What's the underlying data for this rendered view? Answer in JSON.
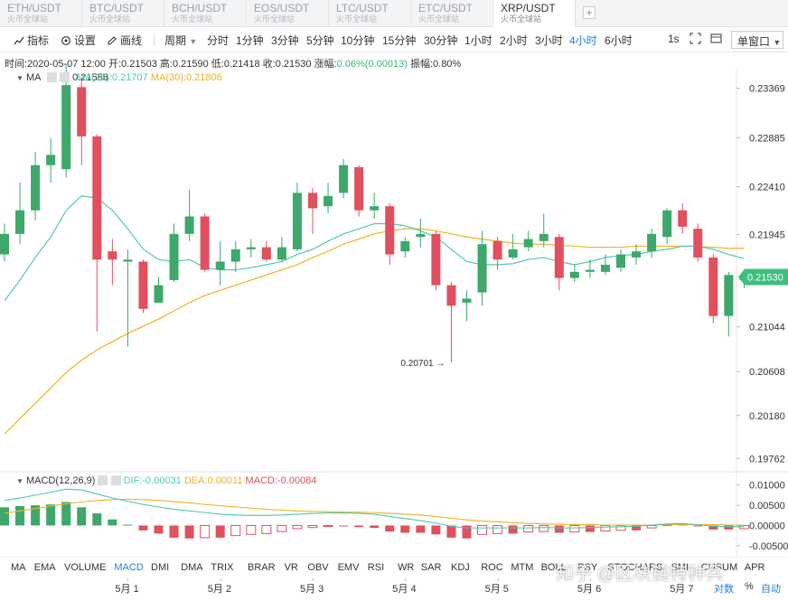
{
  "tabs": [
    {
      "symbol": "ETH/USDT",
      "sub": "火币全球站"
    },
    {
      "symbol": "BTC/USDT",
      "sub": "火币全球站"
    },
    {
      "symbol": "BCH/USDT",
      "sub": "火币全球站"
    },
    {
      "symbol": "EOS/USDT",
      "sub": "火币全球站"
    },
    {
      "symbol": "LTC/USDT",
      "sub": "火币全球站"
    },
    {
      "symbol": "ETC/USDT",
      "sub": "火币全球站"
    },
    {
      "symbol": "XRP/USDT",
      "sub": "火币全球站"
    }
  ],
  "tab_add": "+",
  "toolbar": {
    "indicator": "指标",
    "settings": "设置",
    "draw": "画线",
    "period": "周期",
    "intervals": [
      "分时",
      "1分钟",
      "3分钟",
      "5分钟",
      "10分钟",
      "15分钟",
      "30分钟",
      "1小时",
      "2小时",
      "3小时",
      "4小时",
      "6小时"
    ],
    "active_interval": "4小时",
    "refresh": "1s",
    "window_mode": "单窗口"
  },
  "info": {
    "time_label": "时间:",
    "time": "2020-05-07 12:00",
    "open_label": "开:",
    "open": "0.21503",
    "high_label": "高:",
    "high": "0.21590",
    "low_label": "低:",
    "low": "0.21418",
    "close_label": "收:",
    "close": "0.21530",
    "change_label": "涨幅:",
    "change": "0.06%(0.00013)",
    "amp_label": "振幅:",
    "amplitude": "0.80%"
  },
  "ma_legend": {
    "name": "MA",
    "ma1": "0.21588",
    "ma2": "MA(15):0.21707",
    "ma3": "MA(30):0.21806"
  },
  "macd_legend": {
    "name": "MACD(12,26,9)",
    "dif": "DIF:-0.00031",
    "dea": "DEA:0.00011",
    "macd": "MACD:-0.00084"
  },
  "colors": {
    "up": "#3da86a",
    "down": "#e0505e",
    "ma15": "#4ec9b0",
    "ma30": "#f0b323",
    "accent": "#2a7ae2"
  },
  "chart_data": {
    "type": "candlestick",
    "price_axis": {
      "ticks": [
        0.23369,
        0.22885,
        0.2241,
        0.21945,
        0.21477,
        0.21044,
        0.20608,
        0.2018,
        0.19762
      ],
      "range": [
        0.1965,
        0.2356
      ]
    },
    "last_price": "0.21530",
    "low_annotation": "0.20701",
    "macd_axis": {
      "ticks": [
        "0.01000",
        "0.00500",
        "0.00000",
        "-0.00500"
      ],
      "range": [
        -0.0075,
        0.0115
      ]
    },
    "x_labels": [
      "5月 1",
      "5月 2",
      "5月 3",
      "5月 4",
      "5月 5",
      "5月 6",
      "5月 7"
    ],
    "x_label_index": [
      8,
      14,
      20,
      26,
      32,
      38,
      44
    ],
    "candles": [
      [
        0.2175,
        0.2195,
        0.2205,
        0.2168
      ],
      [
        0.2195,
        0.2218,
        0.2245,
        0.2185
      ],
      [
        0.2218,
        0.2262,
        0.2275,
        0.2208
      ],
      [
        0.2262,
        0.2272,
        0.2288,
        0.2245
      ],
      [
        0.2258,
        0.234,
        0.236,
        0.225
      ],
      [
        0.2338,
        0.229,
        0.2345,
        0.2262
      ],
      [
        0.229,
        0.217,
        0.2292,
        0.21
      ],
      [
        0.2178,
        0.217,
        0.219,
        0.2145
      ],
      [
        0.2168,
        0.217,
        0.218,
        0.2085
      ],
      [
        0.2168,
        0.2122,
        0.217,
        0.2118
      ],
      [
        0.2128,
        0.2145,
        0.2153,
        0.2128
      ],
      [
        0.215,
        0.2195,
        0.2205,
        0.2148
      ],
      [
        0.2195,
        0.2212,
        0.2238,
        0.2188
      ],
      [
        0.2212,
        0.216,
        0.2215,
        0.2158
      ],
      [
        0.216,
        0.2168,
        0.2188,
        0.2145
      ],
      [
        0.2168,
        0.218,
        0.2188,
        0.2158
      ],
      [
        0.218,
        0.2182,
        0.219,
        0.2172
      ],
      [
        0.2182,
        0.217,
        0.2188,
        0.2168
      ],
      [
        0.217,
        0.2182,
        0.2192,
        0.2168
      ],
      [
        0.218,
        0.2235,
        0.2245,
        0.2178
      ],
      [
        0.2235,
        0.222,
        0.224,
        0.2195
      ],
      [
        0.2222,
        0.2232,
        0.2245,
        0.2215
      ],
      [
        0.2235,
        0.2262,
        0.2268,
        0.223
      ],
      [
        0.226,
        0.2218,
        0.2262,
        0.2212
      ],
      [
        0.2218,
        0.2222,
        0.2235,
        0.221
      ],
      [
        0.2222,
        0.2175,
        0.2225,
        0.2165
      ],
      [
        0.2178,
        0.2188,
        0.2192,
        0.2172
      ],
      [
        0.2192,
        0.2195,
        0.221,
        0.2182
      ],
      [
        0.2195,
        0.2145,
        0.2198,
        0.214
      ],
      [
        0.2145,
        0.2125,
        0.2148,
        0.207
      ],
      [
        0.2128,
        0.2132,
        0.214,
        0.211
      ],
      [
        0.2138,
        0.2185,
        0.2198,
        0.2125
      ],
      [
        0.2188,
        0.217,
        0.2192,
        0.216
      ],
      [
        0.2172,
        0.218,
        0.2195,
        0.217
      ],
      [
        0.2182,
        0.219,
        0.2198,
        0.2178
      ],
      [
        0.2188,
        0.2195,
        0.2215,
        0.2182
      ],
      [
        0.2192,
        0.2152,
        0.2195,
        0.214
      ],
      [
        0.2152,
        0.2158,
        0.2165,
        0.2148
      ],
      [
        0.2158,
        0.216,
        0.217,
        0.2152
      ],
      [
        0.2158,
        0.2165,
        0.2175,
        0.2155
      ],
      [
        0.2162,
        0.2175,
        0.218,
        0.2158
      ],
      [
        0.2172,
        0.2178,
        0.2185,
        0.2165
      ],
      [
        0.2178,
        0.2195,
        0.22,
        0.2172
      ],
      [
        0.2192,
        0.2218,
        0.222,
        0.2185
      ],
      [
        0.2218,
        0.2202,
        0.2225,
        0.2195
      ],
      [
        0.22,
        0.2172,
        0.2205,
        0.2168
      ],
      [
        0.2172,
        0.2115,
        0.2175,
        0.2108
      ],
      [
        0.2115,
        0.2155,
        0.2158,
        0.2095
      ],
      [
        0.215,
        0.2153,
        0.2159,
        0.2142
      ]
    ],
    "ma15": [
      0.213,
      0.215,
      0.2172,
      0.2192,
      0.2218,
      0.2232,
      0.223,
      0.2218,
      0.22,
      0.218,
      0.217,
      0.2168,
      0.217,
      0.2162,
      0.216,
      0.216,
      0.2162,
      0.2165,
      0.2168,
      0.2175,
      0.218,
      0.2188,
      0.2195,
      0.22,
      0.2205,
      0.2205,
      0.2203,
      0.2198,
      0.2192,
      0.218,
      0.2168,
      0.2165,
      0.2165,
      0.2166,
      0.217,
      0.2172,
      0.2168,
      0.2165,
      0.2168,
      0.2172,
      0.2174,
      0.2175,
      0.2178,
      0.218,
      0.2183,
      0.2183,
      0.218,
      0.2175,
      0.2171
    ],
    "ma30": [
      0.2,
      0.2015,
      0.203,
      0.2045,
      0.206,
      0.2072,
      0.2082,
      0.209,
      0.2098,
      0.2105,
      0.2112,
      0.212,
      0.2128,
      0.2135,
      0.214,
      0.2145,
      0.215,
      0.2155,
      0.216,
      0.2165,
      0.2172,
      0.2178,
      0.2185,
      0.219,
      0.2195,
      0.2198,
      0.22,
      0.22,
      0.2198,
      0.2195,
      0.2192,
      0.219,
      0.2188,
      0.2186,
      0.2185,
      0.2185,
      0.2184,
      0.2183,
      0.2182,
      0.2182,
      0.2182,
      0.2183,
      0.2183,
      0.2183,
      0.2183,
      0.2183,
      0.2182,
      0.2181,
      0.2181
    ],
    "macd_hist": [
      0.0045,
      0.0048,
      0.005,
      0.0052,
      0.0058,
      0.0045,
      0.003,
      0.0015,
      0.0002,
      -0.0012,
      -0.002,
      -0.003,
      -0.0032,
      -0.003,
      -0.003,
      -0.0025,
      -0.0022,
      -0.002,
      -0.0015,
      -0.0008,
      -0.0005,
      -0.0002,
      -0.0002,
      -0.0004,
      -0.0006,
      -0.0015,
      -0.0018,
      -0.0018,
      -0.0022,
      -0.003,
      -0.0032,
      -0.0022,
      -0.002,
      -0.002,
      -0.0016,
      -0.0015,
      -0.0018,
      -0.0016,
      -0.0016,
      -0.0014,
      -0.0012,
      -0.0012,
      -0.0006,
      0.0001,
      0.0004,
      -0.0002,
      -0.001,
      -0.001,
      -0.0008
    ],
    "dif": [
      0.0062,
      0.0068,
      0.0075,
      0.0082,
      0.009,
      0.0088,
      0.0078,
      0.0068,
      0.006,
      0.0052,
      0.0046,
      0.004,
      0.0036,
      0.0032,
      0.0028,
      0.0026,
      0.0025,
      0.0025,
      0.0026,
      0.0028,
      0.003,
      0.0031,
      0.0031,
      0.003,
      0.0028,
      0.0022,
      0.0017,
      0.0012,
      0.0006,
      -0.0002,
      -0.0006,
      -0.0006,
      -0.0006,
      -0.0006,
      -0.0006,
      -0.0005,
      -0.0006,
      -0.0006,
      -0.0005,
      -0.0004,
      -0.0003,
      -0.0002,
      0.0001,
      0.0004,
      0.0005,
      0.0002,
      -0.0002,
      -0.0003,
      -0.0003
    ],
    "dea": [
      0.003,
      0.0036,
      0.0042,
      0.0048,
      0.0054,
      0.0058,
      0.0062,
      0.0064,
      0.0065,
      0.0064,
      0.0062,
      0.0059,
      0.0056,
      0.0052,
      0.0049,
      0.0046,
      0.0043,
      0.004,
      0.0038,
      0.0036,
      0.0035,
      0.0034,
      0.0033,
      0.0033,
      0.0032,
      0.003,
      0.0028,
      0.0026,
      0.0022,
      0.0018,
      0.0014,
      0.0011,
      0.0009,
      0.0007,
      0.0005,
      0.0004,
      0.0003,
      0.0002,
      0.0002,
      0.0001,
      0.0001,
      0.0001,
      0.0001,
      0.0002,
      0.0002,
      0.0002,
      0.0002,
      0.0001,
      0.0001
    ]
  },
  "indicators": [
    "MA",
    "EMA",
    "VOLUME",
    "MACD",
    "DMI",
    "DMA",
    "TRIX",
    "BRAR",
    "VR",
    "OBV",
    "EMV",
    "RSI",
    "WR",
    "SAR",
    "KDJ",
    "ROC",
    "MTM",
    "BOLL",
    "PSY",
    "STOCHARS",
    "SMI",
    "CUSUM",
    "APR"
  ],
  "active_indicator": "MACD",
  "scale_log": "对数",
  "scale_pct": "%",
  "scale_auto": "自动",
  "watermark": "知乎 @区块链特种兵"
}
